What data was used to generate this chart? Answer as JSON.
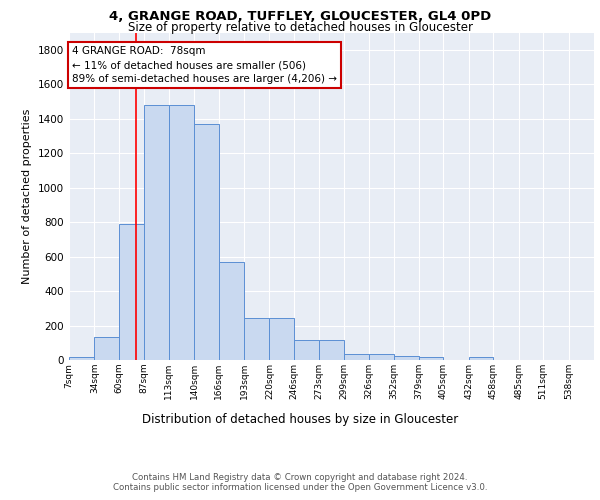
{
  "title": "4, GRANGE ROAD, TUFFLEY, GLOUCESTER, GL4 0PD",
  "subtitle": "Size of property relative to detached houses in Gloucester",
  "xlabel": "Distribution of detached houses by size in Gloucester",
  "ylabel": "Number of detached properties",
  "bar_edges": [
    7,
    34,
    60,
    87,
    113,
    140,
    166,
    193,
    220,
    246,
    273,
    299,
    326,
    352,
    379,
    405,
    432,
    458,
    485,
    511,
    538
  ],
  "bar_heights": [
    20,
    135,
    790,
    1480,
    1480,
    1370,
    570,
    245,
    245,
    115,
    115,
    35,
    35,
    25,
    20,
    0,
    20,
    0,
    0,
    0,
    0
  ],
  "bar_color": "#c9d9f0",
  "bar_edge_color": "#5b8fd4",
  "background_color": "#e8edf5",
  "plot_bg_color": "#e8edf5",
  "red_line_x": 78,
  "annotation_title": "4 GRANGE ROAD:  78sqm",
  "annotation_line1": "← 11% of detached houses are smaller (506)",
  "annotation_line2": "89% of semi-detached houses are larger (4,206) →",
  "annotation_box_color": "#ffffff",
  "annotation_box_edge": "#cc0000",
  "footer_line1": "Contains HM Land Registry data © Crown copyright and database right 2024.",
  "footer_line2": "Contains public sector information licensed under the Open Government Licence v3.0.",
  "ylim": [
    0,
    1900
  ],
  "yticks": [
    0,
    200,
    400,
    600,
    800,
    1000,
    1200,
    1400,
    1600,
    1800
  ]
}
